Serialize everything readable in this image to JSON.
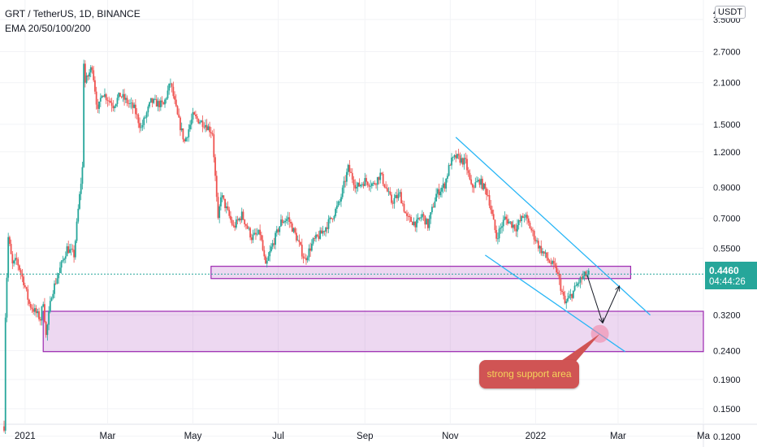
{
  "header": {
    "symbol_line": "GRT / TetherUS, 1D, BINANCE",
    "indicator_line": "EMA 20/50/100/200"
  },
  "price_axis": {
    "currency": "USDT",
    "top_clipped": "4",
    "ticks": [
      "3.5000",
      "2.7000",
      "2.1000",
      "1.5000",
      "1.2000",
      "0.9000",
      "0.7000",
      "0.5500",
      "0.3200",
      "0.2400",
      "0.1900",
      "0.1500",
      "0.1200"
    ]
  },
  "time_axis": {
    "ticks": [
      "2021",
      "Mar",
      "May",
      "Jul",
      "Sep",
      "Nov",
      "2022",
      "Mar",
      "Ma"
    ]
  },
  "last_price": {
    "price": "0.4460",
    "countdown": "04:44:26",
    "color": "#26a69a"
  },
  "annotation": {
    "text": "strong support area",
    "fill": "#d05454",
    "text_color": "#f5d55a"
  },
  "colors": {
    "up": "#26a69a",
    "down": "#ef5350",
    "zone": "#9c27b0",
    "channel": "#29b6f6"
  },
  "chart_data": {
    "type": "candlestick",
    "title": "GRT / TetherUS, 1D, BINANCE",
    "indicator": "EMA 20/50/100/200",
    "scale": "log",
    "ylim": [
      0.11,
      4.1
    ],
    "yticks": [
      3.5,
      2.7,
      2.1,
      1.5,
      1.2,
      0.9,
      0.7,
      0.55,
      0.32,
      0.24,
      0.19,
      0.15,
      0.12
    ],
    "xlim": [
      "2020-12-17",
      "2022-05-01"
    ],
    "xticks": [
      "2021-01-01",
      "2021-03-01",
      "2021-05-01",
      "2021-07-01",
      "2021-09-01",
      "2021-11-01",
      "2022-01-01",
      "2022-03-01",
      "2022-05-01"
    ],
    "last_price": 0.446,
    "price_path": [
      [
        "2020-12-17",
        0.13
      ],
      [
        "2020-12-18",
        0.32
      ],
      [
        "2020-12-20",
        0.6
      ],
      [
        "2020-12-23",
        0.48
      ],
      [
        "2020-12-26",
        0.5
      ],
      [
        "2020-12-31",
        0.42
      ],
      [
        "2021-01-04",
        0.35
      ],
      [
        "2021-01-08",
        0.33
      ],
      [
        "2021-01-12",
        0.31
      ],
      [
        "2021-01-14",
        0.36
      ],
      [
        "2021-01-16",
        0.27
      ],
      [
        "2021-01-20",
        0.38
      ],
      [
        "2021-01-25",
        0.45
      ],
      [
        "2021-01-31",
        0.55
      ],
      [
        "2021-02-05",
        0.52
      ],
      [
        "2021-02-08",
        0.75
      ],
      [
        "2021-02-11",
        1.05
      ],
      [
        "2021-02-12",
        2.5
      ],
      [
        "2021-02-13",
        2.1
      ],
      [
        "2021-02-18",
        2.4
      ],
      [
        "2021-02-22",
        1.65
      ],
      [
        "2021-02-25",
        1.95
      ],
      [
        "2021-03-05",
        1.75
      ],
      [
        "2021-03-10",
        1.9
      ],
      [
        "2021-03-20",
        1.7
      ],
      [
        "2021-03-25",
        1.45
      ],
      [
        "2021-04-01",
        1.8
      ],
      [
        "2021-04-10",
        1.75
      ],
      [
        "2021-04-15",
        2.1
      ],
      [
        "2021-04-20",
        1.6
      ],
      [
        "2021-04-25",
        1.3
      ],
      [
        "2021-05-01",
        1.6
      ],
      [
        "2021-05-05",
        1.55
      ],
      [
        "2021-05-10",
        1.5
      ],
      [
        "2021-05-15",
        1.4
      ],
      [
        "2021-05-19",
        0.68
      ],
      [
        "2021-05-21",
        0.85
      ],
      [
        "2021-05-30",
        0.65
      ],
      [
        "2021-06-05",
        0.72
      ],
      [
        "2021-06-12",
        0.6
      ],
      [
        "2021-06-18",
        0.62
      ],
      [
        "2021-06-22",
        0.47
      ],
      [
        "2021-06-26",
        0.55
      ],
      [
        "2021-07-03",
        0.68
      ],
      [
        "2021-07-08",
        0.7
      ],
      [
        "2021-07-14",
        0.6
      ],
      [
        "2021-07-20",
        0.5
      ],
      [
        "2021-07-26",
        0.58
      ],
      [
        "2021-08-01",
        0.62
      ],
      [
        "2021-08-08",
        0.7
      ],
      [
        "2021-08-14",
        0.8
      ],
      [
        "2021-08-20",
        1.05
      ],
      [
        "2021-08-26",
        0.9
      ],
      [
        "2021-09-01",
        0.95
      ],
      [
        "2021-09-07",
        0.92
      ],
      [
        "2021-09-12",
        1.0
      ],
      [
        "2021-09-20",
        0.8
      ],
      [
        "2021-09-26",
        0.85
      ],
      [
        "2021-10-01",
        0.7
      ],
      [
        "2021-10-08",
        0.67
      ],
      [
        "2021-10-12",
        0.72
      ],
      [
        "2021-10-16",
        0.66
      ],
      [
        "2021-10-22",
        0.85
      ],
      [
        "2021-10-28",
        0.92
      ],
      [
        "2021-11-01",
        1.1
      ],
      [
        "2021-11-05",
        1.15
      ],
      [
        "2021-11-12",
        1.1
      ],
      [
        "2021-11-16",
        0.9
      ],
      [
        "2021-11-22",
        0.95
      ],
      [
        "2021-11-28",
        0.85
      ],
      [
        "2021-12-04",
        0.6
      ],
      [
        "2021-12-10",
        0.7
      ],
      [
        "2021-12-18",
        0.65
      ],
      [
        "2021-12-24",
        0.72
      ],
      [
        "2021-12-30",
        0.62
      ],
      [
        "2022-01-04",
        0.55
      ],
      [
        "2022-01-10",
        0.5
      ],
      [
        "2022-01-16",
        0.46
      ],
      [
        "2022-01-22",
        0.35
      ],
      [
        "2022-01-27",
        0.38
      ],
      [
        "2022-02-01",
        0.42
      ],
      [
        "2022-02-05",
        0.44
      ],
      [
        "2022-02-08",
        0.446
      ]
    ],
    "zones": [
      {
        "from": "2021-05-14",
        "to": "2022-03-10",
        "low": 0.43,
        "high": 0.475
      },
      {
        "from": "2021-01-14",
        "to": "2022-05-01",
        "low": 0.238,
        "high": 0.33
      }
    ],
    "channel_lines": [
      {
        "from": [
          "2021-11-05",
          1.35
        ],
        "to": [
          "2022-03-24",
          0.32
        ]
      },
      {
        "from": [
          "2021-11-26",
          0.52
        ],
        "to": [
          "2022-03-06",
          0.238
        ]
      }
    ],
    "projection_path": [
      [
        "2022-02-07",
        0.44
      ],
      [
        "2022-02-18",
        0.3
      ],
      [
        "2022-03-02",
        0.405
      ]
    ],
    "support_marker": [
      "2022-02-16",
      0.275
    ]
  }
}
